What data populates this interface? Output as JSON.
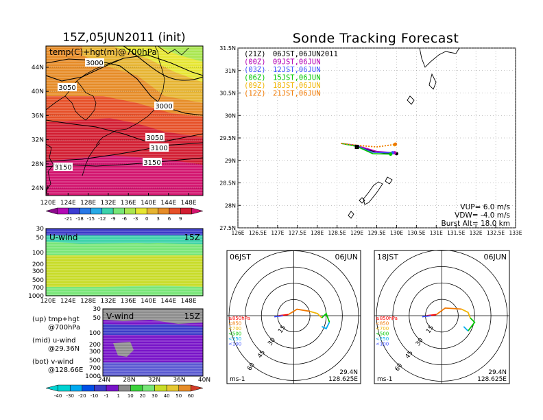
{
  "left_title": "15Z,05JUN2011 (init)",
  "right_title": "Sonde Tracking Forecast",
  "colors": {
    "temp": [
      "#8c0a8c",
      "#b40ab4",
      "#3c3cd2",
      "#2878e6",
      "#28aae6",
      "#3cd2aa",
      "#78e678",
      "#aae650",
      "#e6e632",
      "#e6b432",
      "#e68c28",
      "#e65028",
      "#d21e32",
      "#d2146e"
    ],
    "wind": [
      "#00d2d2",
      "#00aaf0",
      "#0050e6",
      "#3c3cc8",
      "#7814c8",
      "#8c8c8c",
      "#3cd23c",
      "#78e678",
      "#c8dc28",
      "#e6c832",
      "#e68c28",
      "#d23c28"
    ],
    "track": [
      "#000000",
      "#b400b4",
      "#3c50ff",
      "#00c800",
      "#f0b400",
      "#f07800"
    ]
  },
  "map_panel": {
    "label": "temp(C)+hgt(m)@700hPa",
    "lat_ticks": [
      "44N",
      "40N",
      "36N",
      "32N",
      "28N",
      "24N"
    ],
    "lon_ticks": [
      "120E",
      "124E",
      "128E",
      "132E",
      "136E",
      "140E",
      "144E",
      "148E"
    ],
    "contour_labels": [
      "3000",
      "3050",
      "3000",
      "3050",
      "3100",
      "3150",
      "3150"
    ],
    "colorbar_ticks": [
      "-21",
      "-18",
      "-15",
      "-12",
      "-9",
      "-6",
      "-3",
      "0",
      "3",
      "6",
      "9"
    ]
  },
  "uwind_panel": {
    "label": "U-wind",
    "time": "15Z",
    "p_ticks": [
      "30",
      "50",
      "100",
      "200",
      "300",
      "500",
      "700",
      "1000"
    ],
    "lon_ticks": [
      "120E",
      "124E",
      "128E",
      "132E",
      "136E",
      "140E",
      "144E",
      "148E"
    ]
  },
  "vwind_panel": {
    "label": "V-wind",
    "time": "15Z",
    "p_ticks": [
      "30",
      "50",
      "100",
      "200",
      "300",
      "500",
      "700",
      "1000"
    ],
    "lat_ticks": [
      "24N",
      "28N",
      "32N",
      "36N",
      "40N"
    ],
    "colorbar_ticks": [
      "-40",
      "-30",
      "-20",
      "-10",
      "-1",
      "1",
      "10",
      "20",
      "30",
      "40",
      "50",
      "60"
    ]
  },
  "legend_notes": [
    {
      "head": "(up) tmp+hgt",
      "sub": "@700hPa"
    },
    {
      "head": "(mid) u-wind",
      "sub": "@29.36N"
    },
    {
      "head": "(bot) v-wind",
      "sub": "@128.66E"
    }
  ],
  "track_panel": {
    "lat_ticks": [
      "31.5N",
      "31N",
      "30.5N",
      "30N",
      "29.5N",
      "29N",
      "28.5N",
      "28N",
      "27.5N"
    ],
    "lon_ticks": [
      "126E",
      "126.5E",
      "127E",
      "127.5E",
      "128E",
      "128.5E",
      "129E",
      "129.5E",
      "130E",
      "130.5E",
      "131E",
      "131.5E",
      "132E",
      "132.5E",
      "133E"
    ],
    "legend": [
      {
        "run": "(21Z)",
        "time": "06JST,06JUN2011"
      },
      {
        "run": "(00Z)",
        "time": "09JST,06JUN"
      },
      {
        "run": "(03Z)",
        "time": "12JST,06JUN"
      },
      {
        "run": "(06Z)",
        "time": "15JST,06JUN"
      },
      {
        "run": "(09Z)",
        "time": "18JST,06JUN"
      },
      {
        "run": "(12Z)",
        "time": "21JST,06JUN"
      }
    ],
    "vup": "VUP= 6.0 m/s",
    "vdw": "VDW= -4.0 m/s",
    "burst": "Burst Alt= 18.0 km"
  },
  "chart_data": [
    {
      "type": "heatmap",
      "title": "15Z,05JUN2011 (init)",
      "label": "temp(C)+hgt(m)@700hPa",
      "x_range": [
        120,
        150
      ],
      "y_range": [
        22,
        48
      ],
      "contour_levels": [
        3000,
        3050,
        3100,
        3150
      ],
      "colorbar": [
        -21,
        -18,
        -15,
        -12,
        -9,
        -6,
        -3,
        0,
        3,
        6,
        9
      ]
    },
    {
      "type": "heatmap",
      "label": "U-wind",
      "time": "15Z",
      "section_lat": "29.36N",
      "x_range": [
        120,
        150
      ],
      "p_range": [
        1000,
        30
      ]
    },
    {
      "type": "heatmap",
      "label": "V-wind",
      "time": "15Z",
      "section_lon": "128.66E",
      "x_range": [
        24,
        40
      ],
      "p_range": [
        1000,
        30
      ],
      "colorbar": [
        -40,
        -30,
        -20,
        -10,
        -1,
        1,
        10,
        20,
        30,
        40,
        50,
        60
      ]
    },
    {
      "type": "line",
      "title": "Sonde Tracking Forecast",
      "x_range": [
        126,
        133
      ],
      "y_range": [
        27.5,
        31.5
      ],
      "launch": [
        129.0,
        29.3
      ],
      "series": [
        {
          "name": "(21Z)",
          "points": [
            [
              128.6,
              29.38
            ],
            [
              129.0,
              29.32
            ],
            [
              129.5,
              29.18
            ],
            [
              130.0,
              29.15
            ]
          ]
        },
        {
          "name": "(00Z)",
          "points": [
            [
              128.6,
              29.38
            ],
            [
              129.0,
              29.33
            ],
            [
              129.5,
              29.2
            ],
            [
              129.95,
              29.17
            ]
          ]
        },
        {
          "name": "(03Z)",
          "points": [
            [
              128.6,
              29.38
            ],
            [
              129.0,
              29.32
            ],
            [
              129.4,
              29.18
            ],
            [
              129.9,
              29.17
            ]
          ]
        },
        {
          "name": "(06Z)",
          "points": [
            [
              128.6,
              29.38
            ],
            [
              129.0,
              29.31
            ],
            [
              129.4,
              29.15
            ],
            [
              129.85,
              29.14
            ]
          ]
        },
        {
          "name": "(09Z)",
          "points": [
            [
              128.6,
              29.38
            ],
            [
              129.0,
              29.33
            ],
            [
              129.5,
              29.3
            ],
            [
              129.95,
              29.35
            ]
          ]
        },
        {
          "name": "(12Z)",
          "points": [
            [
              128.6,
              29.38
            ],
            [
              129.0,
              29.34
            ],
            [
              129.5,
              29.3
            ],
            [
              129.97,
              29.36
            ]
          ]
        }
      ]
    },
    {
      "type": "scatter",
      "title_left": "06JST",
      "title_right": "06JUN",
      "ring_labels": [
        "15",
        "30",
        "45",
        "60"
      ],
      "unit": "ms-1",
      "lat": "29.4N",
      "lon": "128.625E",
      "levels": [
        "≥850hPa",
        "<850",
        "<700",
        "<500",
        "<250",
        "<100"
      ]
    },
    {
      "type": "scatter",
      "title_left": "18JST",
      "title_right": "06JUN",
      "ring_labels": [
        "15",
        "30",
        "45",
        "60"
      ],
      "unit": "ms-1",
      "lat": "29.4N",
      "lon": "128.625E",
      "levels": [
        "≥850hPa",
        "<850",
        "<700",
        "<500",
        "<250",
        "<100"
      ]
    }
  ]
}
